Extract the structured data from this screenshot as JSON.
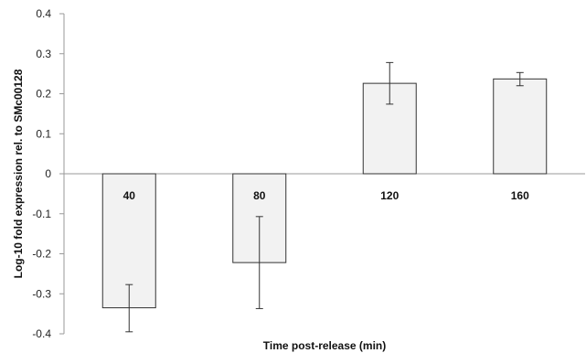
{
  "chart_data": {
    "type": "bar",
    "categories": [
      "40",
      "80",
      "120",
      "160"
    ],
    "values": [
      -0.335,
      -0.222,
      0.226,
      0.237
    ],
    "error_low": [
      -0.395,
      -0.337,
      0.174,
      0.22
    ],
    "error_high": [
      -0.277,
      -0.107,
      0.278,
      0.253
    ],
    "ylim": [
      -0.4,
      0.4
    ],
    "yticks": [
      "0.4",
      "0.3",
      "0.2",
      "0.1",
      "0",
      "-0.1",
      "-0.2",
      "-0.3",
      "-0.4"
    ],
    "xlabel": "Time post-release (min)",
    "ylabel": "Log-10 fold expression rel. to SMc00128",
    "grid": false,
    "legend": "none",
    "colors": {
      "bar_fill": "#f2f2f2",
      "bar_stroke": "#333333",
      "axis": "#999999",
      "error_bar": "#333333"
    }
  }
}
